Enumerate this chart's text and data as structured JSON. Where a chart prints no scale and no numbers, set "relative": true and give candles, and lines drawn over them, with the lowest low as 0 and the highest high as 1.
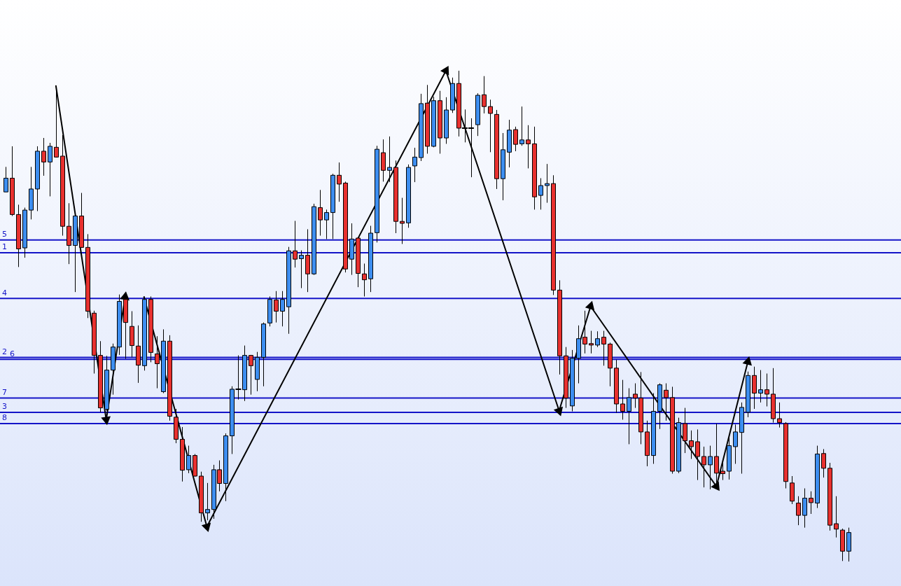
{
  "chart_data": {
    "type": "candlestick",
    "relative": true,
    "tick_labels": false,
    "legend": false,
    "categories": [
      null,
      null,
      null,
      null,
      null,
      null,
      null,
      null,
      null,
      null,
      null,
      null,
      null,
      null,
      null,
      null,
      null,
      null,
      null,
      null,
      null,
      null,
      null,
      null,
      null,
      null,
      null,
      null,
      null,
      null,
      null,
      null,
      null,
      null,
      null,
      null,
      null,
      null,
      null,
      null,
      null,
      null,
      null,
      null,
      null,
      null,
      null,
      null,
      null,
      null,
      null,
      null,
      null,
      null,
      null,
      null,
      null,
      null,
      null,
      null,
      null,
      null,
      null,
      null,
      null,
      null,
      null,
      null,
      null,
      null,
      null,
      null,
      null,
      null,
      null,
      null,
      null,
      null,
      null,
      null,
      null,
      null,
      null,
      null,
      null,
      null,
      null,
      null,
      null,
      null,
      null,
      null,
      null,
      null,
      null,
      null,
      null,
      null,
      null,
      null,
      null,
      null,
      null,
      null,
      null,
      null,
      null,
      null,
      null,
      null,
      null,
      null,
      null,
      null,
      null,
      null,
      null,
      null,
      null,
      null,
      null,
      null,
      null,
      null,
      null,
      null,
      null,
      null,
      null,
      null,
      null,
      null,
      null,
      null,
      null
    ],
    "ohlc": [
      [
        0.753,
        0.804,
        0.753,
        0.781
      ],
      [
        0.781,
        0.846,
        0.704,
        0.707
      ],
      [
        0.707,
        0.727,
        0.6,
        0.637
      ],
      [
        0.639,
        0.721,
        0.619,
        0.716
      ],
      [
        0.716,
        0.804,
        0.697,
        0.759
      ],
      [
        0.759,
        0.846,
        0.714,
        0.836
      ],
      [
        0.836,
        0.863,
        0.786,
        0.814
      ],
      [
        0.814,
        0.853,
        0.744,
        0.846
      ],
      [
        0.844,
        0.969,
        0.823,
        0.824
      ],
      [
        0.826,
        0.869,
        0.664,
        0.683
      ],
      [
        0.683,
        0.73,
        0.606,
        0.644
      ],
      [
        0.644,
        0.709,
        0.549,
        0.704
      ],
      [
        0.704,
        0.751,
        0.639,
        0.64
      ],
      [
        0.64,
        0.667,
        0.496,
        0.51
      ],
      [
        0.506,
        0.511,
        0.383,
        0.42
      ],
      [
        0.42,
        0.449,
        0.304,
        0.313
      ],
      [
        0.31,
        0.419,
        0.307,
        0.39
      ],
      [
        0.39,
        0.444,
        0.34,
        0.437
      ],
      [
        0.437,
        0.544,
        0.421,
        0.53
      ],
      [
        0.534,
        0.54,
        0.413,
        0.487
      ],
      [
        0.479,
        0.51,
        0.416,
        0.44
      ],
      [
        0.439,
        0.481,
        0.364,
        0.4
      ],
      [
        0.399,
        0.54,
        0.389,
        0.534
      ],
      [
        0.534,
        0.54,
        0.406,
        0.426
      ],
      [
        0.423,
        0.459,
        0.353,
        0.403
      ],
      [
        0.346,
        0.473,
        0.343,
        0.449
      ],
      [
        0.449,
        0.461,
        0.287,
        0.296
      ],
      [
        0.294,
        0.311,
        0.241,
        0.249
      ],
      [
        0.249,
        0.274,
        0.163,
        0.186
      ],
      [
        0.187,
        0.236,
        0.18,
        0.216
      ],
      [
        0.216,
        0.219,
        0.173,
        0.174
      ],
      [
        0.174,
        0.183,
        0.081,
        0.099
      ],
      [
        0.099,
        0.16,
        0.084,
        0.106
      ],
      [
        0.106,
        0.197,
        0.087,
        0.187
      ],
      [
        0.187,
        0.206,
        0.143,
        0.159
      ],
      [
        0.159,
        0.261,
        0.123,
        0.256
      ],
      [
        0.256,
        0.357,
        0.219,
        0.351
      ],
      [
        0.351,
        0.42,
        0.33,
        0.351
      ],
      [
        0.35,
        0.44,
        0.327,
        0.42
      ],
      [
        0.42,
        0.421,
        0.34,
        0.399
      ],
      [
        0.371,
        0.427,
        0.347,
        0.416
      ],
      [
        0.416,
        0.487,
        0.357,
        0.484
      ],
      [
        0.486,
        0.54,
        0.479,
        0.534
      ],
      [
        0.533,
        0.551,
        0.487,
        0.51
      ],
      [
        0.51,
        0.551,
        0.479,
        0.534
      ],
      [
        0.519,
        0.641,
        0.464,
        0.633
      ],
      [
        0.633,
        0.694,
        0.599,
        0.616
      ],
      [
        0.617,
        0.634,
        0.557,
        0.624
      ],
      [
        0.624,
        0.677,
        0.549,
        0.586
      ],
      [
        0.586,
        0.729,
        0.584,
        0.723
      ],
      [
        0.721,
        0.757,
        0.664,
        0.696
      ],
      [
        0.696,
        0.717,
        0.657,
        0.711
      ],
      [
        0.711,
        0.79,
        0.657,
        0.787
      ],
      [
        0.787,
        0.813,
        0.733,
        0.769
      ],
      [
        0.771,
        0.774,
        0.589,
        0.596
      ],
      [
        0.616,
        0.689,
        0.584,
        0.657
      ],
      [
        0.659,
        0.66,
        0.559,
        0.587
      ],
      [
        0.586,
        0.607,
        0.54,
        0.574
      ],
      [
        0.576,
        0.684,
        0.549,
        0.669
      ],
      [
        0.67,
        0.847,
        0.65,
        0.84
      ],
      [
        0.833,
        0.86,
        0.774,
        0.797
      ],
      [
        0.797,
        0.866,
        0.773,
        0.803
      ],
      [
        0.803,
        0.817,
        0.669,
        0.693
      ],
      [
        0.693,
        0.741,
        0.647,
        0.689
      ],
      [
        0.69,
        0.809,
        0.68,
        0.803
      ],
      [
        0.806,
        0.843,
        0.773,
        0.824
      ],
      [
        0.823,
        0.953,
        0.816,
        0.933
      ],
      [
        0.934,
        0.971,
        0.831,
        0.846
      ],
      [
        0.846,
        0.947,
        0.844,
        0.939
      ],
      [
        0.939,
        0.959,
        0.831,
        0.863
      ],
      [
        0.863,
        0.946,
        0.851,
        0.92
      ],
      [
        0.92,
        0.986,
        0.914,
        0.974
      ],
      [
        0.974,
        1,
        0.866,
        0.883
      ],
      [
        0.883,
        0.921,
        0.854,
        0.883
      ],
      [
        0.883,
        0.903,
        0.783,
        0.883
      ],
      [
        0.89,
        0.954,
        0.867,
        0.95
      ],
      [
        0.951,
        0.989,
        0.913,
        0.927
      ],
      [
        0.927,
        0.941,
        0.834,
        0.913
      ],
      [
        0.911,
        0.92,
        0.759,
        0.78
      ],
      [
        0.78,
        0.873,
        0.736,
        0.839
      ],
      [
        0.834,
        0.9,
        0.803,
        0.879
      ],
      [
        0.88,
        0.886,
        0.836,
        0.85
      ],
      [
        0.851,
        0.927,
        0.847,
        0.859
      ],
      [
        0.859,
        0.889,
        0.801,
        0.851
      ],
      [
        0.851,
        0.886,
        0.717,
        0.743
      ],
      [
        0.746,
        0.781,
        0.717,
        0.766
      ],
      [
        0.766,
        0.81,
        0.731,
        0.77
      ],
      [
        0.77,
        0.787,
        0.543,
        0.553
      ],
      [
        0.553,
        0.573,
        0.381,
        0.419
      ],
      [
        0.419,
        0.437,
        0.313,
        0.333
      ],
      [
        0.317,
        0.431,
        0.306,
        0.414
      ],
      [
        0.414,
        0.481,
        0.363,
        0.454
      ],
      [
        0.457,
        0.511,
        0.424,
        0.443
      ],
      [
        0.444,
        0.47,
        0.424,
        0.441
      ],
      [
        0.441,
        0.469,
        0.437,
        0.454
      ],
      [
        0.457,
        0.47,
        0.399,
        0.443
      ],
      [
        0.443,
        0.446,
        0.357,
        0.394
      ],
      [
        0.394,
        0.411,
        0.303,
        0.321
      ],
      [
        0.321,
        0.37,
        0.289,
        0.306
      ],
      [
        0.306,
        0.353,
        0.239,
        0.334
      ],
      [
        0.341,
        0.363,
        0.313,
        0.333
      ],
      [
        0.333,
        0.386,
        0.239,
        0.264
      ],
      [
        0.264,
        0.287,
        0.194,
        0.216
      ],
      [
        0.216,
        0.343,
        0.199,
        0.306
      ],
      [
        0.306,
        0.363,
        0.27,
        0.36
      ],
      [
        0.349,
        0.363,
        0.287,
        0.334
      ],
      [
        0.334,
        0.356,
        0.179,
        0.184
      ],
      [
        0.184,
        0.293,
        0.18,
        0.283
      ],
      [
        0.281,
        0.313,
        0.221,
        0.246
      ],
      [
        0.246,
        0.267,
        0.209,
        0.234
      ],
      [
        0.244,
        0.269,
        0.166,
        0.214
      ],
      [
        0.214,
        0.234,
        0.151,
        0.197
      ],
      [
        0.197,
        0.236,
        0.147,
        0.214
      ],
      [
        0.214,
        0.281,
        0.159,
        0.18
      ],
      [
        0.184,
        0.206,
        0.166,
        0.179
      ],
      [
        0.184,
        0.257,
        0.167,
        0.236
      ],
      [
        0.234,
        0.279,
        0.199,
        0.264
      ],
      [
        0.263,
        0.324,
        0.179,
        0.314
      ],
      [
        0.304,
        0.387,
        0.294,
        0.379
      ],
      [
        0.379,
        0.397,
        0.311,
        0.343
      ],
      [
        0.343,
        0.39,
        0.324,
        0.35
      ],
      [
        0.35,
        0.383,
        0.316,
        0.341
      ],
      [
        0.341,
        0.394,
        0.283,
        0.291
      ],
      [
        0.291,
        0.324,
        0.273,
        0.283
      ],
      [
        0.281,
        0.284,
        0.149,
        0.163
      ],
      [
        0.16,
        0.174,
        0.117,
        0.123
      ],
      [
        0.119,
        0.133,
        0.074,
        0.094
      ],
      [
        0.094,
        0.149,
        0.069,
        0.129
      ],
      [
        0.129,
        0.143,
        0.097,
        0.12
      ],
      [
        0.119,
        0.236,
        0.109,
        0.219
      ],
      [
        0.22,
        0.229,
        0.171,
        0.19
      ],
      [
        0.19,
        0.201,
        0.063,
        0.074
      ],
      [
        0.077,
        0.133,
        0.049,
        0.066
      ],
      [
        0.064,
        0.067,
        0.001,
        0.021
      ],
      [
        0.021,
        0.069,
        0,
        0.059
      ]
    ],
    "colors": [
      "#3d8ef0",
      "#e8312f",
      "#e8312f",
      "#3d8ef0",
      "#3d8ef0",
      "#3d8ef0",
      "#e8312f",
      "#3d8ef0",
      "#e8312f",
      "#e8312f",
      "#e8312f",
      "#3d8ef0",
      "#e8312f",
      "#e8312f",
      "#e8312f",
      "#e8312f",
      "#3d8ef0",
      "#3d8ef0",
      "#3d8ef0",
      "#e8312f",
      "#e8312f",
      "#e8312f",
      "#3d8ef0",
      "#e8312f",
      "#e8312f",
      "#3d8ef0",
      "#e8312f",
      "#e8312f",
      "#e8312f",
      "#3d8ef0",
      "#e8312f",
      "#e8312f",
      "#3d8ef0",
      "#3d8ef0",
      "#e8312f",
      "#3d8ef0",
      "#3d8ef0",
      "#000000",
      "#3d8ef0",
      "#e8312f",
      "#3d8ef0",
      "#3d8ef0",
      "#3d8ef0",
      "#e8312f",
      "#3d8ef0",
      "#3d8ef0",
      "#e8312f",
      "#3d8ef0",
      "#e8312f",
      "#3d8ef0",
      "#e8312f",
      "#3d8ef0",
      "#3d8ef0",
      "#e8312f",
      "#e8312f",
      "#3d8ef0",
      "#e8312f",
      "#e8312f",
      "#3d8ef0",
      "#3d8ef0",
      "#e8312f",
      "#3d8ef0",
      "#e8312f",
      "#e8312f",
      "#3d8ef0",
      "#3d8ef0",
      "#3d8ef0",
      "#e8312f",
      "#3d8ef0",
      "#e8312f",
      "#3d8ef0",
      "#3d8ef0",
      "#e8312f",
      "#000000",
      "#000000",
      "#3d8ef0",
      "#e8312f",
      "#e8312f",
      "#e8312f",
      "#3d8ef0",
      "#3d8ef0",
      "#e8312f",
      "#3d8ef0",
      "#e8312f",
      "#e8312f",
      "#3d8ef0",
      "#3d8ef0",
      "#e8312f",
      "#e8312f",
      "#e8312f",
      "#3d8ef0",
      "#3d8ef0",
      "#e8312f",
      "#e8312f",
      "#3d8ef0",
      "#e8312f",
      "#e8312f",
      "#e8312f",
      "#e8312f",
      "#3d8ef0",
      "#e8312f",
      "#e8312f",
      "#e8312f",
      "#3d8ef0",
      "#3d8ef0",
      "#e8312f",
      "#e8312f",
      "#3d8ef0",
      "#e8312f",
      "#e8312f",
      "#e8312f",
      "#e8312f",
      "#3d8ef0",
      "#e8312f",
      "#e8312f",
      "#3d8ef0",
      "#3d8ef0",
      "#3d8ef0",
      "#3d8ef0",
      "#e8312f",
      "#3d8ef0",
      "#e8312f",
      "#e8312f",
      "#e8312f",
      "#e8312f",
      "#e8312f",
      "#e8312f",
      "#3d8ef0",
      "#e8312f",
      "#3d8ef0",
      "#e8312f",
      "#e8312f",
      "#e8312f",
      "#e8312f",
      "#3d8ef0"
    ],
    "series": [
      {
        "type": "line",
        "color": "#000000",
        "marker": "triangle",
        "values": [
          null,
          null,
          null,
          null,
          null,
          null,
          null,
          null,
          0.969,
          null,
          null,
          null,
          null,
          null,
          null,
          null,
          0.289,
          null,
          null,
          0.539,
          null,
          null,
          null,
          null,
          null,
          null,
          null,
          null,
          null,
          null,
          null,
          null,
          null,
          null,
          null,
          null,
          null,
          null,
          null,
          null,
          null,
          null,
          null,
          null,
          null,
          null,
          null,
          null,
          null,
          null,
          null,
          null,
          null,
          null,
          null,
          null,
          null,
          null,
          null,
          null,
          null,
          null,
          null,
          null,
          null,
          null,
          null,
          null,
          null,
          null,
          null,
          null,
          null,
          null,
          null,
          null,
          null,
          null,
          null,
          null,
          null,
          null,
          null,
          null,
          null,
          null,
          null,
          null,
          null,
          null,
          null,
          null,
          null,
          null,
          null,
          null,
          null,
          null,
          null,
          null,
          null,
          null,
          null,
          null,
          null,
          null,
          null,
          null,
          null,
          null,
          null,
          null,
          null,
          null,
          null,
          null,
          null,
          null,
          null,
          null,
          null,
          null,
          null,
          null,
          null,
          null,
          null,
          null,
          null,
          null,
          null,
          null,
          null,
          null,
          null
        ]
      },
      {
        "type": "line",
        "color": "#000000",
        "marker": "triangle",
        "values": [
          null,
          null,
          null,
          null,
          null,
          null,
          null,
          null,
          null,
          null,
          null,
          null,
          null,
          null,
          null,
          null,
          null,
          null,
          null,
          null,
          null,
          null,
          0.539,
          null,
          null,
          null,
          null,
          null,
          null,
          null,
          null,
          null,
          0.071,
          null,
          null,
          null,
          null,
          null,
          null,
          null,
          null,
          null,
          null,
          null,
          null,
          null,
          null,
          null,
          null,
          null,
          null,
          null,
          null,
          null,
          null,
          null,
          null,
          null,
          null,
          null,
          null,
          null,
          null,
          null,
          null,
          null,
          null,
          null,
          null,
          null,
          1,
          null,
          null,
          null,
          null,
          null,
          null,
          null,
          null,
          null,
          null,
          null,
          null,
          null,
          null,
          null,
          null,
          null,
          0.307,
          null,
          null,
          null,
          null,
          0.52,
          null,
          null,
          null,
          null,
          null,
          null,
          null,
          null,
          null,
          null,
          null,
          null,
          null,
          null,
          null,
          null,
          null,
          null,
          null,
          0.153,
          null,
          null,
          null,
          null,
          0.407,
          null,
          null,
          null,
          null,
          null,
          null,
          null,
          null,
          null,
          null,
          null,
          null,
          null,
          null,
          null,
          null
        ]
      }
    ],
    "ref_lines": [
      {
        "axis": "y",
        "value": 0.655,
        "color": "#1414c8"
      },
      {
        "axis": "y",
        "value": 0.629,
        "color": "#1414c8"
      },
      {
        "axis": "y",
        "value": 0.536,
        "color": "#1414c8"
      },
      {
        "axis": "y",
        "value": 0.416,
        "color": "#1414c8"
      },
      {
        "axis": "y",
        "value": 0.412,
        "color": "#1414c8"
      },
      {
        "axis": "y",
        "value": 0.333,
        "color": "#1414c8"
      },
      {
        "axis": "y",
        "value": 0.304,
        "color": "#1414c8"
      },
      {
        "axis": "y",
        "value": 0.281,
        "color": "#1414c8"
      }
    ],
    "annotations": [
      {
        "text": "5",
        "y": 0.655
      },
      {
        "text": "1",
        "y": 0.629
      },
      {
        "text": "4",
        "y": 0.536
      },
      {
        "text": "2",
        "y": 0.416
      },
      {
        "text": "6",
        "y": 0.412
      },
      {
        "text": "7",
        "y": 0.333
      },
      {
        "text": "3",
        "y": 0.304
      },
      {
        "text": "8",
        "y": 0.281
      }
    ]
  }
}
